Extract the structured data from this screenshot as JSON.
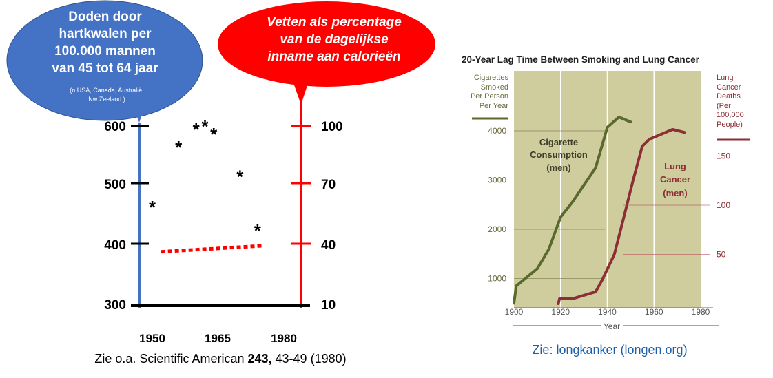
{
  "left_chart": {
    "left_bubble": {
      "title_lines": [
        "Doden door",
        "hartkwalen per",
        "100.000 mannen",
        "van 45 tot 64 jaar"
      ],
      "note_lines": [
        "(n USA,  Canada, Australië,",
        "Nw Zeeland.)"
      ],
      "color": "#4472c4"
    },
    "right_bubble": {
      "title_lines": [
        "Vetten als percentage",
        "van de dagelijkse",
        "inname aan calorieën"
      ],
      "color": "#ff0000"
    },
    "left_axis_ticks": [
      "600",
      "500",
      "400",
      "300"
    ],
    "right_axis_ticks": [
      "100",
      "70",
      "40",
      "10"
    ],
    "x_labels": [
      "1950",
      "1965",
      "1980"
    ],
    "star_symbol": "*",
    "caption": {
      "prefix": "Zie o.a. Scientific American ",
      "bold": "243,",
      "suffix": " 43-49 (1980)"
    }
  },
  "chart_data": [
    {
      "type": "scatter",
      "title": "",
      "series": [
        {
          "name": "Doden door hartkwalen per 100.000 mannen van 45 tot 64 jaar",
          "x": [
            1950,
            1956,
            1960,
            1962,
            1964,
            1970,
            1974
          ],
          "y": [
            470,
            570,
            600,
            605,
            592,
            521,
            431
          ]
        }
      ],
      "overlay_line": {
        "series": "Vetten als percentage van de dagelijkse inname aan calorieën",
        "x": [
          1952,
          1975
        ],
        "y": [
          37,
          40
        ],
        "style": "dotted",
        "color": "#ff0000"
      },
      "left_axis": {
        "ticks": [
          300,
          400,
          500,
          600
        ],
        "color": "#4472c4"
      },
      "right_axis": {
        "ticks": [
          10,
          40,
          70,
          100
        ],
        "color": "#ff0000"
      },
      "x_ticks": [
        1950,
        1965,
        1980
      ]
    },
    {
      "type": "line",
      "title": "20-Year Lag Time Between Smoking and Lung Cancer",
      "xlabel": "Year",
      "x_ticks": [
        "1900",
        "1920",
        "1940",
        "1960",
        "1980"
      ],
      "left_ylabel_lines": [
        "Cigarettes",
        "Smoked",
        "Per Person",
        "Per Year"
      ],
      "right_ylabel_lines": [
        "Lung",
        "Cancer",
        "Deaths",
        "(Per",
        "100,000",
        "People)"
      ],
      "left_ticks": [
        "1000",
        "2000",
        "3000",
        "4000"
      ],
      "right_ticks": [
        "50",
        "100",
        "150"
      ],
      "xlim": [
        1900,
        1980
      ],
      "series": [
        {
          "name": "Cigarette Consumption (men)",
          "label_lines": [
            "Cigarette",
            "Consumption",
            "(men)"
          ],
          "axis": "left",
          "color": "#5a6a2c",
          "x": [
            1900,
            1901,
            1910,
            1915,
            1920,
            1925,
            1930,
            1935,
            1940,
            1945,
            1950
          ],
          "y": [
            500,
            850,
            1200,
            1600,
            2250,
            2550,
            2900,
            3250,
            4070,
            4280,
            4180
          ]
        },
        {
          "name": "Lung Cancer (men)",
          "label_lines": [
            "Lung",
            "Cancer",
            "(men)"
          ],
          "axis": "right",
          "color": "#8b2f35",
          "x": [
            1919,
            1919.5,
            1925,
            1935,
            1938,
            1943,
            1947,
            1951,
            1955,
            1958,
            1968,
            1973
          ],
          "y": [
            0,
            5,
            5,
            12,
            25,
            50,
            87,
            125,
            160,
            167,
            177,
            174
          ]
        }
      ],
      "colors": {
        "plot_bg": "#cfcc9e",
        "gridline_left": "#6b6b3c",
        "gridline_right": "#b04050"
      }
    }
  ],
  "right_chart_link": "Zie: longkanker (longen.org)"
}
